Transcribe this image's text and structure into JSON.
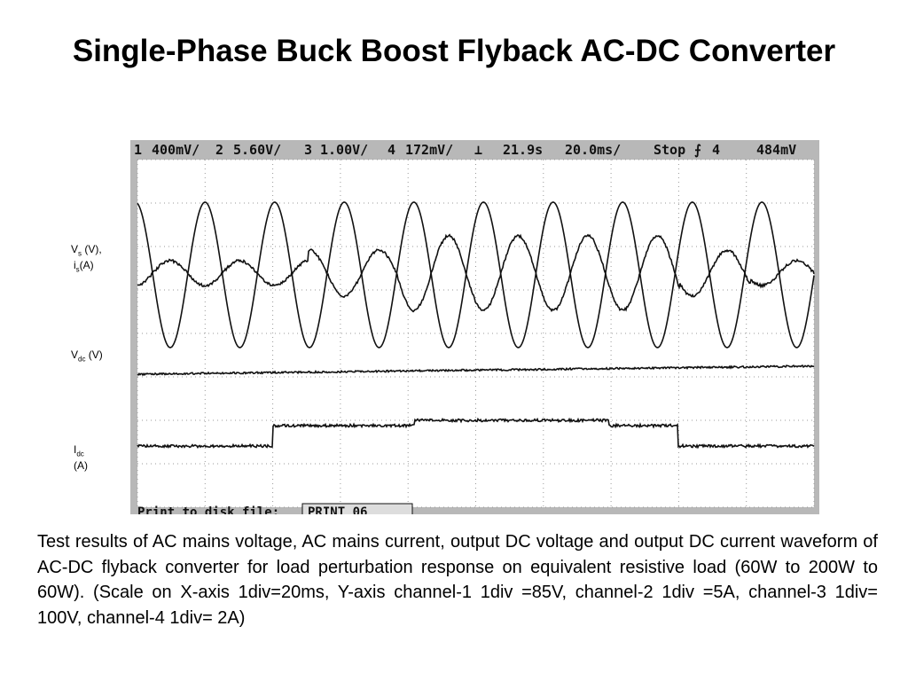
{
  "title": "Single-Phase Buck Boost Flyback AC-DC Converter",
  "scope": {
    "header": [
      "1",
      "400mV/",
      "2",
      "5.60V/",
      "3",
      "1.00V/",
      "4",
      "172mV/",
      "⊥",
      "21.9s",
      "20.0ms/",
      "Stop",
      "⨍",
      "4",
      "484mV"
    ],
    "footer": [
      "Print to disk file:",
      "PRINT_06"
    ]
  },
  "labels": [
    {
      "main": "V",
      "sub": "s",
      "rest": " (V),"
    },
    {
      "main": "i",
      "sub": "s",
      "rest": "(A)"
    },
    {
      "main": "V",
      "sub": "dc",
      "rest": " (V)"
    },
    {
      "main": "I",
      "sub": "dc",
      "rest": ""
    },
    {
      "main": "(A)"
    }
  ],
  "caption": "Test results of AC mains voltage, AC mains current, output DC voltage and output DC current waveform of AC-DC flyback converter for load perturbation response on equivalent resistive load (60W to 200W to 60W). (Scale on X-axis 1div=20ms, Y-axis channel-1 1div =85V, channel-2 1div =5A, channel-3 1div= 100V, channel-4 1div= 2A)"
}
